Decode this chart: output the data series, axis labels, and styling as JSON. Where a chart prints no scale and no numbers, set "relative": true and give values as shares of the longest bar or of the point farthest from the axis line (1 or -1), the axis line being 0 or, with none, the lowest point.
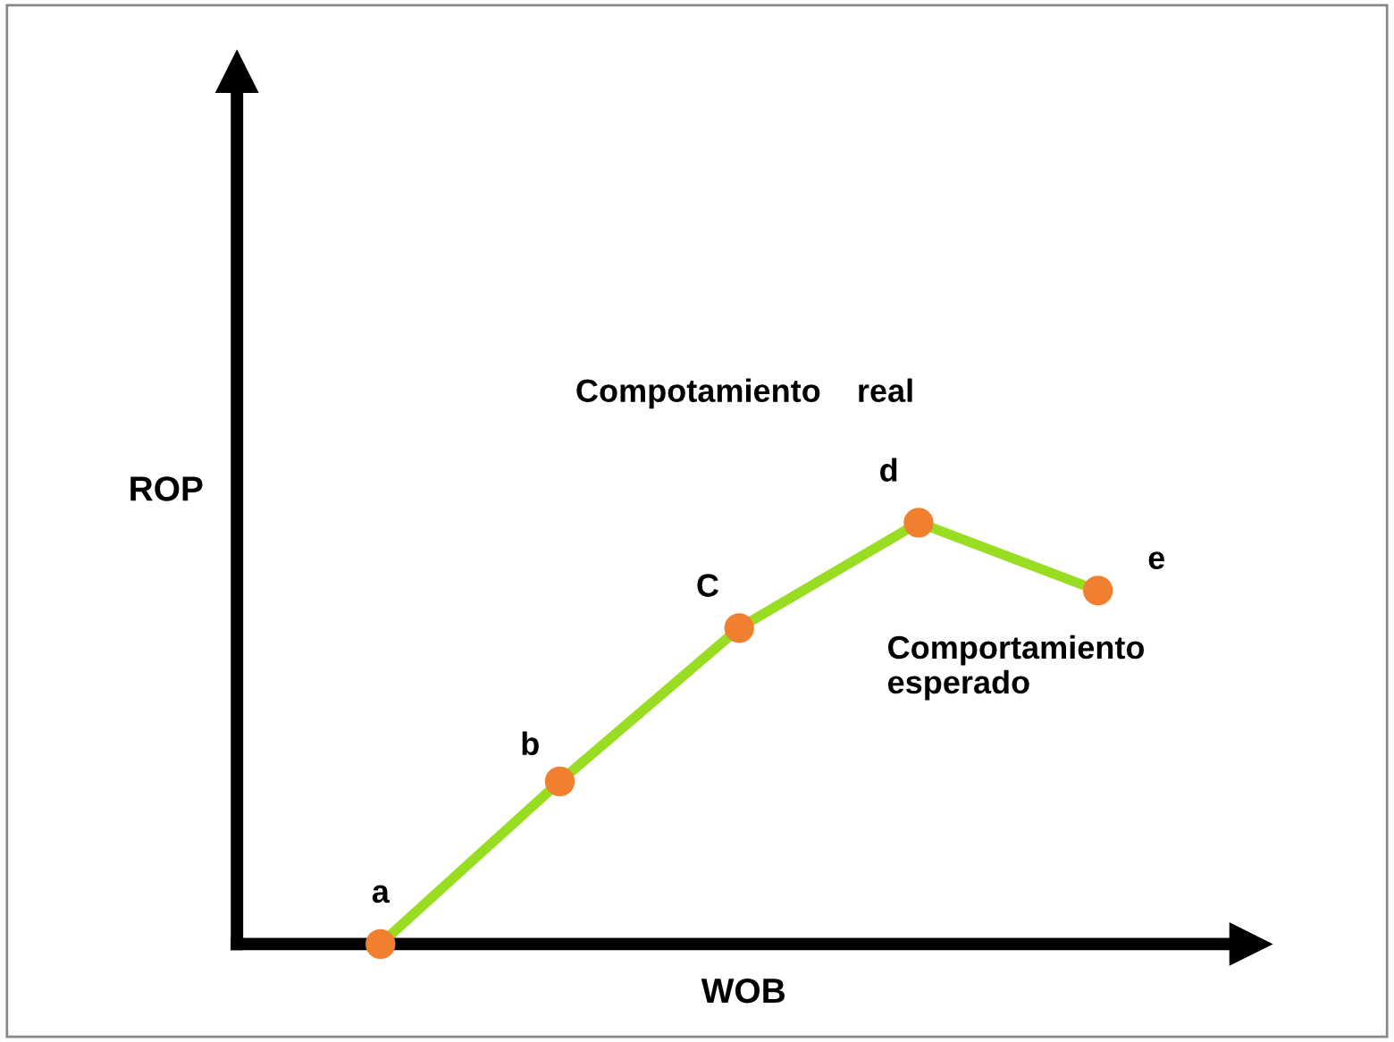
{
  "chart_data": {
    "type": "line",
    "relative": true,
    "xlabel": "WOB",
    "ylabel": "ROP",
    "marker": "circle",
    "line_style": "solid",
    "categories": [
      null,
      null,
      null,
      null,
      null
    ],
    "series": [
      {
        "color": "#99dd22",
        "colors": [
          "#f08030",
          "#f08030",
          "#f08030",
          "#f08030",
          "#f08030"
        ],
        "values": [
          0,
          0.386,
          0.75,
          1,
          0.839
        ]
      }
    ],
    "annotations": [
      "a",
      "b",
      "C",
      "d",
      "e",
      "Compotamiento    real",
      "Comportamiento\nesperado"
    ]
  }
}
